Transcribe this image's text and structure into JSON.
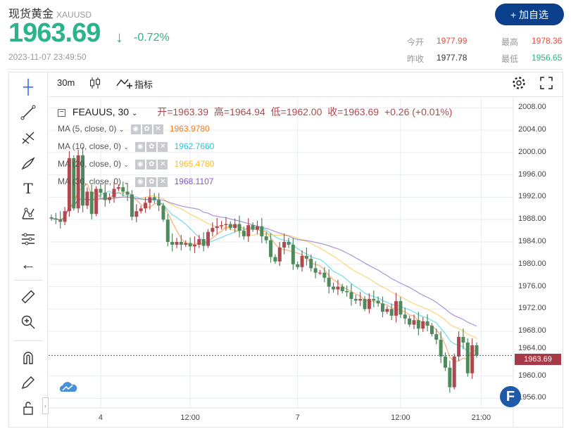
{
  "header": {
    "name": "现货黄金",
    "symbol": "XAUUSD",
    "price": "1963.69",
    "change_pct": "-0.72%",
    "timestamp": "2023-11-07 23:49:50",
    "add_button": "+ 加自选",
    "stats": {
      "open_label": "今开",
      "open": "1977.99",
      "high_label": "最高",
      "high": "1978.36",
      "prev_label": "昨收",
      "prev": "1977.78",
      "low_label": "最低",
      "low": "1956.65"
    },
    "colors": {
      "down": "#2db38a",
      "up": "#e74c3c",
      "button": "#0a3f8c"
    }
  },
  "toolbar": {
    "interval": "30m",
    "indicators": "指标",
    "icons": [
      "candle-type-icon",
      "indicator-icon",
      "settings-icon",
      "fullscreen-icon"
    ]
  },
  "left_tools": [
    "crosshair-icon",
    "trendline-icon",
    "fib-icon",
    "brush-icon",
    "text-icon",
    "pattern-icon",
    "measure-lines-icon",
    "back-arrow-icon",
    "ruler-icon",
    "zoom-in-icon",
    "magnet-icon",
    "lock-draw-icon",
    "lock-icon"
  ],
  "legend": {
    "symbol": "FEAUUS, 30",
    "open": "开=1963.39",
    "high": "高=1964.94",
    "low": "低=1962.00",
    "close": "收=1963.69",
    "change": "+0.26 (+0.01%)",
    "ma": [
      {
        "label": "MA (5, close, 0)",
        "value": "1963.9780",
        "color": "#f57c1f"
      },
      {
        "label": "MA (10, close, 0)",
        "value": "1962.7660",
        "color": "#26c6da"
      },
      {
        "label": "MA (20, close, 0)",
        "value": "1965.4780",
        "color": "#fbbc2c"
      },
      {
        "label": "MA (30, close, 0)",
        "value": "1968.1107",
        "color": "#7e57c2"
      }
    ]
  },
  "chart_data": {
    "type": "candlestick",
    "up_color": "#b0494f",
    "down_color": "#4e8a5c",
    "y_ticks": [
      "2008.00",
      "2004.00",
      "2000.00",
      "1996.00",
      "1992.00",
      "1988.00",
      "1984.00",
      "1980.00",
      "1976.00",
      "1972.00",
      "1968.00",
      "1964.00",
      "1960.00",
      "1956.00"
    ],
    "ylim": [
      1954.3,
      2009.8
    ],
    "x_ticks": [
      {
        "label": "4",
        "index": 11
      },
      {
        "label": "12:00",
        "index": 31
      },
      {
        "label": "7",
        "index": 55
      },
      {
        "label": "12:00",
        "index": 78
      },
      {
        "label": "21:00",
        "index": 96
      }
    ],
    "current_price": "1963.69",
    "closes": [
      1988.2,
      1988.0,
      1987.6,
      1989.5,
      1999.0,
      1990.0,
      1999.5,
      1990.5,
      1993.0,
      1989.0,
      1993.5,
      1992.8,
      1991.5,
      1992.0,
      1993.5,
      1993.8,
      1993.0,
      1992.5,
      1988.5,
      1989.5,
      1990.0,
      1991.0,
      1992.0,
      1991.5,
      1990.5,
      1988.0,
      1984.0,
      1983.5,
      1984.0,
      1983.5,
      1983.8,
      1983.2,
      1983.5,
      1984.5,
      1983.3,
      1985.8,
      1986.5,
      1986.8,
      1987.0,
      1987.2,
      1986.5,
      1987.2,
      1986.0,
      1985.0,
      1987.0,
      1986.2,
      1986.8,
      1985.0,
      1984.3,
      1981.3,
      1980.5,
      1983.0,
      1984.0,
      1983.5,
      1980.0,
      1979.5,
      1981.5,
      1981.0,
      1979.3,
      1978.5,
      1978.5,
      1977.6,
      1976.0,
      1975.5,
      1976.0,
      1975.2,
      1975.0,
      1973.8,
      1973.5,
      1973.8,
      1972.0,
      1973.8,
      1973.5,
      1973.0,
      1971.5,
      1972.0,
      1970.8,
      1973.4,
      1971.0,
      1970.3,
      1969.2,
      1970.0,
      1968.5,
      1969.8,
      1969.0,
      1967.5,
      1966.5,
      1963.5,
      1961.5,
      1958.0,
      1963.5,
      1967.0,
      1966.0,
      1960.5,
      1965.5,
      1963.69
    ]
  }
}
